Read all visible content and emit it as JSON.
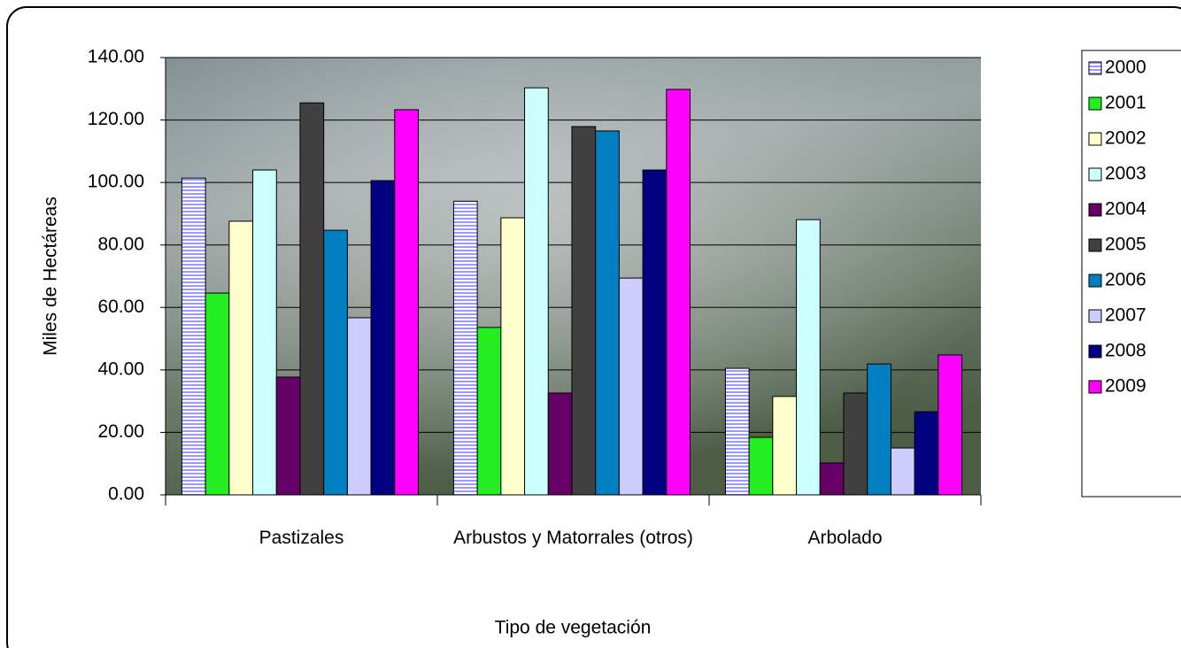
{
  "chart_data": {
    "type": "bar",
    "x_label": "Tipo de vegetación",
    "y_label": "Miles de Hectáreas",
    "categories": [
      "Pastizales",
      "Arbustos y Matorrales (otros)",
      "Arbolado"
    ],
    "series": [
      {
        "name": "2000",
        "color": "#9999ff",
        "pattern": "stripes",
        "values": [
          101.4,
          94.0,
          40.5
        ]
      },
      {
        "name": "2001",
        "color": "#22ee22",
        "values": [
          64.6,
          53.6,
          18.4
        ]
      },
      {
        "name": "2002",
        "color": "#ffffcc",
        "values": [
          87.6,
          88.7,
          31.5
        ]
      },
      {
        "name": "2003",
        "color": "#ccffff",
        "values": [
          104.0,
          130.3,
          88.1
        ]
      },
      {
        "name": "2004",
        "color": "#660066",
        "values": [
          37.7,
          32.6,
          10.2
        ]
      },
      {
        "name": "2005",
        "color": "#404040",
        "values": [
          125.5,
          117.9,
          32.6
        ]
      },
      {
        "name": "2006",
        "color": "#0080c0",
        "values": [
          84.7,
          116.5,
          41.9
        ]
      },
      {
        "name": "2007",
        "color": "#ccccff",
        "values": [
          56.7,
          69.4,
          15.0
        ]
      },
      {
        "name": "2008",
        "color": "#000080",
        "values": [
          100.6,
          104.0,
          26.6
        ]
      },
      {
        "name": "2009",
        "color": "#ff00ff",
        "values": [
          123.3,
          129.8,
          44.8
        ]
      }
    ],
    "ylim": [
      0,
      140
    ],
    "yticks": [
      {
        "value": 0,
        "label": "0.00"
      },
      {
        "value": 20,
        "label": "20.00"
      },
      {
        "value": 40,
        "label": "40.00"
      },
      {
        "value": 60,
        "label": "60.00"
      },
      {
        "value": 80,
        "label": "80.00"
      },
      {
        "value": 100,
        "label": "100.00"
      },
      {
        "value": 120,
        "label": "120.00"
      },
      {
        "value": 140,
        "label": "140.00"
      }
    ],
    "grid": true,
    "legend": "right"
  }
}
